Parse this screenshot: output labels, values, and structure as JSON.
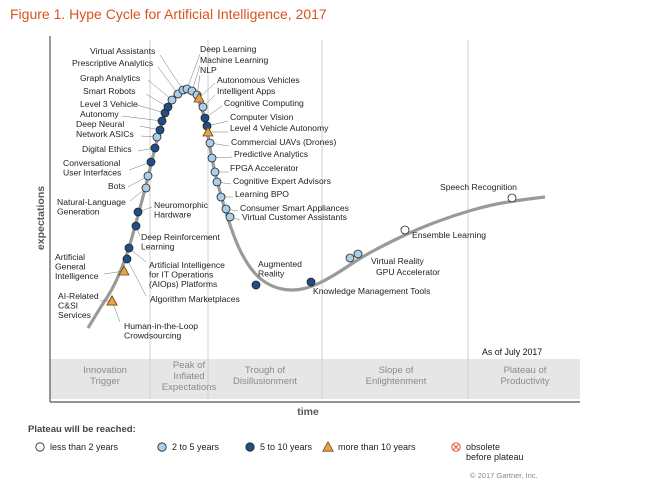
{
  "title": "Figure 1. Hype Cycle for Artificial Intelligence, 2017",
  "chart_data": {
    "type": "scatter",
    "title": "Figure 1. Hype Cycle for Artificial Intelligence, 2017",
    "xlabel": "time",
    "ylabel": "expectations",
    "as_of": "As of July 2017",
    "phases": [
      {
        "label": "Innovation\nTrigger"
      },
      {
        "label": "Peak of\nInflated\nExpectations"
      },
      {
        "label": "Trough of\nDisillusionment"
      },
      {
        "label": "Slope of\nEnlightenment"
      },
      {
        "label": "Plateau of\nProductivity"
      }
    ],
    "legend_title": "Plateau will be reached:",
    "legend": [
      {
        "key": "lt2",
        "label": "less than 2 years",
        "color": "#ffffff",
        "shape": "circle"
      },
      {
        "key": "2to5",
        "label": "2 to 5 years",
        "color": "#a9cfea",
        "shape": "circle"
      },
      {
        "key": "5to10",
        "label": "5 to 10 years",
        "color": "#1f4f86",
        "shape": "circle"
      },
      {
        "key": "gt10",
        "label": "more than 10 years",
        "color": "#e8a24a",
        "shape": "triangle"
      },
      {
        "key": "obs",
        "label": "obsolete\nbefore plateau",
        "color": "#e46b5a",
        "shape": "xcircle"
      }
    ],
    "points": [
      {
        "label": "Human-in-the-Loop\nCrowdsourcing",
        "cat": "gt10"
      },
      {
        "label": "AI-Related\nC&SI\nServices",
        "cat": "gt10"
      },
      {
        "label": "Algorithm Marketplaces",
        "cat": "5to10"
      },
      {
        "label": "Artificial\nGeneral\nIntelligence",
        "cat": "gt10"
      },
      {
        "label": "Artificial Intelligence\nfor IT Operations\n(AIOps) Platforms",
        "cat": "5to10"
      },
      {
        "label": "Deep Reinforcement\nLearning",
        "cat": "5to10"
      },
      {
        "label": "Neuromorphic\nHardware",
        "cat": "5to10"
      },
      {
        "label": "Natural-Language\nGeneration",
        "cat": "2to5"
      },
      {
        "label": "Bots",
        "cat": "2to5"
      },
      {
        "label": "Conversational\nUser Interfaces",
        "cat": "5to10"
      },
      {
        "label": "Digital Ethics",
        "cat": "5to10"
      },
      {
        "label": "Network ASICs",
        "cat": "2to5"
      },
      {
        "label": "Deep Neural",
        "cat": "5to10"
      },
      {
        "label": "Autonomy",
        "cat": "5to10"
      },
      {
        "label": "Level 3 Vehicle",
        "cat": "5to10"
      },
      {
        "label": "Smart Robots",
        "cat": "5to10"
      },
      {
        "label": "Graph Analytics",
        "cat": "2to5"
      },
      {
        "label": "Prescriptive Analytics",
        "cat": "2to5"
      },
      {
        "label": "Virtual Assistants",
        "cat": "2to5"
      },
      {
        "label": "Deep Learning",
        "cat": "2to5"
      },
      {
        "label": "Machine Learning",
        "cat": "2to5"
      },
      {
        "label": "NLP",
        "cat": "2to5"
      },
      {
        "label": "Autonomous Vehicles",
        "cat": "gt10"
      },
      {
        "label": "Intelligent Apps",
        "cat": "2to5"
      },
      {
        "label": "Cognitive Computing",
        "cat": "5to10"
      },
      {
        "label": "Computer Vision",
        "cat": "5to10"
      },
      {
        "label": "Level 4 Vehicle Autonomy",
        "cat": "gt10"
      },
      {
        "label": "Commercial UAVs (Drones)",
        "cat": "2to5"
      },
      {
        "label": "Predictive Analytics",
        "cat": "2to5"
      },
      {
        "label": "FPGA Accelerator",
        "cat": "2to5"
      },
      {
        "label": "Cognitive Expert Advisors",
        "cat": "2to5"
      },
      {
        "label": "Learning BPO",
        "cat": "2to5"
      },
      {
        "label": "Consumer Smart Appliances",
        "cat": "2to5"
      },
      {
        "label": "Virtual Customer Assistants",
        "cat": "2to5"
      },
      {
        "label": "Augmented\nReality",
        "cat": "5to10"
      },
      {
        "label": "Knowledge Management Tools",
        "cat": "5to10"
      },
      {
        "label": "Virtual Reality",
        "cat": "2to5"
      },
      {
        "label": "GPU Accelerator",
        "cat": "2to5"
      },
      {
        "label": "Ensemble Learning",
        "cat": "lt2"
      },
      {
        "label": "Speech Recognition",
        "cat": "lt2"
      }
    ]
  },
  "copyright": "© 2017 Gartner, Inc."
}
